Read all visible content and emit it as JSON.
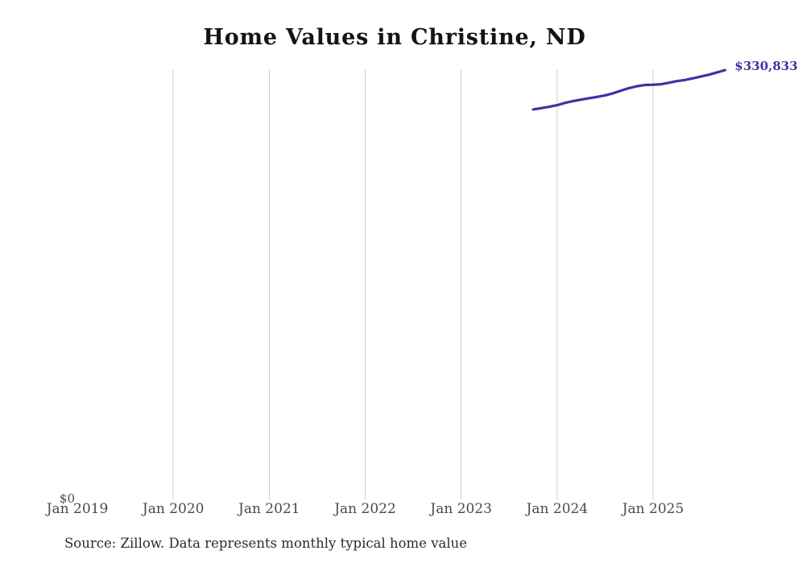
{
  "chart_data": {
    "type": "line",
    "title": "Home Values in Christine, ND",
    "x_ticks": [
      {
        "label": "Jan 2019",
        "gridline": false
      },
      {
        "label": "Jan 2020",
        "gridline": true
      },
      {
        "label": "Jan 2021",
        "gridline": true
      },
      {
        "label": "Jan 2022",
        "gridline": true
      },
      {
        "label": "Jan 2023",
        "gridline": true
      },
      {
        "label": "Jan 2024",
        "gridline": true
      },
      {
        "label": "Jan 2025",
        "gridline": true
      }
    ],
    "y_tick_labels": [
      "$0"
    ],
    "ylim": [
      0,
      330833
    ],
    "grid": "vertical-only",
    "legend": "none",
    "end_label": "$330,833",
    "colors": {
      "line": "#3a34a3",
      "grid": "#cccccc",
      "title": "#141414",
      "axis_text": "#4a4a4a",
      "end_label": "#3a34a3"
    },
    "series": [
      {
        "name": "Monthly typical home value",
        "points": [
          {
            "month": "Oct 2023",
            "value": 300400
          },
          {
            "month": "Nov 2023",
            "value": 301400
          },
          {
            "month": "Dec 2023",
            "value": 302500
          },
          {
            "month": "Jan 2024",
            "value": 303700
          },
          {
            "month": "Feb 2024",
            "value": 305500
          },
          {
            "month": "Mar 2024",
            "value": 306900
          },
          {
            "month": "Apr 2024",
            "value": 308000
          },
          {
            "month": "May 2024",
            "value": 309100
          },
          {
            "month": "Jun 2024",
            "value": 310100
          },
          {
            "month": "Jul 2024",
            "value": 311300
          },
          {
            "month": "Aug 2024",
            "value": 312900
          },
          {
            "month": "Sep 2024",
            "value": 315000
          },
          {
            "month": "Oct 2024",
            "value": 316900
          },
          {
            "month": "Nov 2024",
            "value": 318400
          },
          {
            "month": "Dec 2024",
            "value": 319300
          },
          {
            "month": "Jan 2025",
            "value": 319500
          },
          {
            "month": "Feb 2025",
            "value": 319900
          },
          {
            "month": "Mar 2025",
            "value": 321100
          },
          {
            "month": "Apr 2025",
            "value": 322300
          },
          {
            "month": "May 2025",
            "value": 323200
          },
          {
            "month": "Jun 2025",
            "value": 324500
          },
          {
            "month": "Jul 2025",
            "value": 325900
          },
          {
            "month": "Aug 2025",
            "value": 327300
          },
          {
            "month": "Sep 2025",
            "value": 329000
          },
          {
            "month": "Oct 2025",
            "value": 330833
          }
        ]
      }
    ]
  },
  "source_note": "Source: Zillow. Data represents monthly typical home value"
}
